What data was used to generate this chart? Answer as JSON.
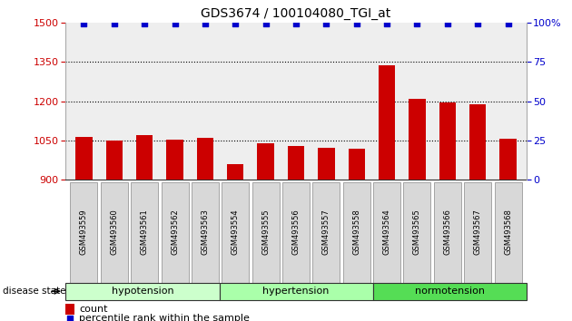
{
  "title": "GDS3674 / 100104080_TGI_at",
  "samples": [
    "GSM493559",
    "GSM493560",
    "GSM493561",
    "GSM493562",
    "GSM493563",
    "GSM493554",
    "GSM493555",
    "GSM493556",
    "GSM493557",
    "GSM493558",
    "GSM493564",
    "GSM493565",
    "GSM493566",
    "GSM493567",
    "GSM493568"
  ],
  "bar_values": [
    1065,
    1050,
    1070,
    1052,
    1060,
    960,
    1038,
    1028,
    1022,
    1018,
    1338,
    1207,
    1195,
    1188,
    1057
  ],
  "bar_color": "#cc0000",
  "percentile_color": "#0000cc",
  "ylim_left": [
    900,
    1500
  ],
  "ylim_right": [
    0,
    100
  ],
  "yticks_left": [
    900,
    1050,
    1200,
    1350,
    1500
  ],
  "yticks_right": [
    0,
    25,
    50,
    75,
    100
  ],
  "grid_values": [
    1050,
    1200,
    1350
  ],
  "groups": [
    {
      "label": "hypotension",
      "start": 0,
      "end": 5,
      "color": "#ccffcc"
    },
    {
      "label": "hypertension",
      "start": 5,
      "end": 10,
      "color": "#aaffaa"
    },
    {
      "label": "normotension",
      "start": 10,
      "end": 15,
      "color": "#55dd55"
    }
  ],
  "disease_state_label": "disease state",
  "legend_count_label": "count",
  "legend_percentile_label": "percentile rank within the sample",
  "tick_label_color_left": "#cc0000",
  "tick_label_color_right": "#0000cc",
  "plot_bg_color": "#eeeeee",
  "bar_width": 0.55
}
